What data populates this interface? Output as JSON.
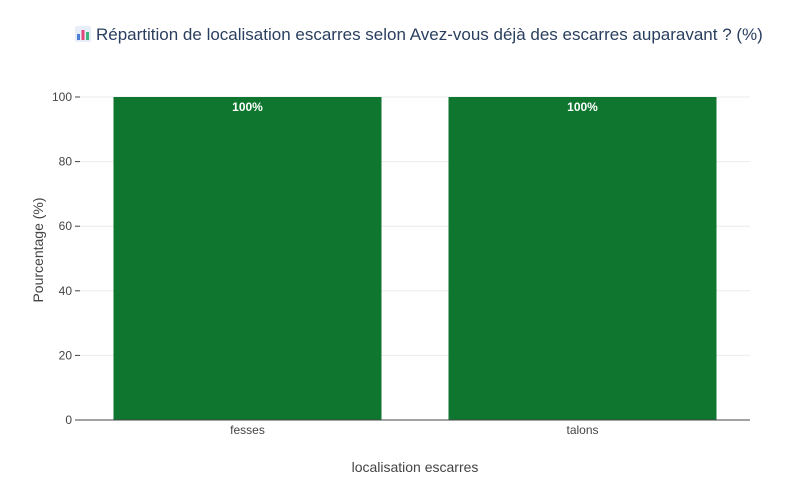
{
  "chart_data": {
    "type": "bar",
    "title": "Répartition de localisation escarres selon Avez-vous déjà des escarres auparavant ? (%)",
    "title_icon": "bar-chart-icon",
    "xlabel": "localisation escarres",
    "ylabel": "Pourcentage (%)",
    "categories": [
      "fesses",
      "talons"
    ],
    "values": [
      100,
      100
    ],
    "data_labels": [
      "100%",
      "100%"
    ],
    "ylim": [
      0,
      100
    ],
    "yticks": [
      0,
      20,
      40,
      60,
      80,
      100
    ],
    "ytick_labels": [
      "0",
      "20",
      "40",
      "60",
      "80",
      "100"
    ],
    "bar_color": "#0e762e",
    "grid": true,
    "legend": "none"
  }
}
